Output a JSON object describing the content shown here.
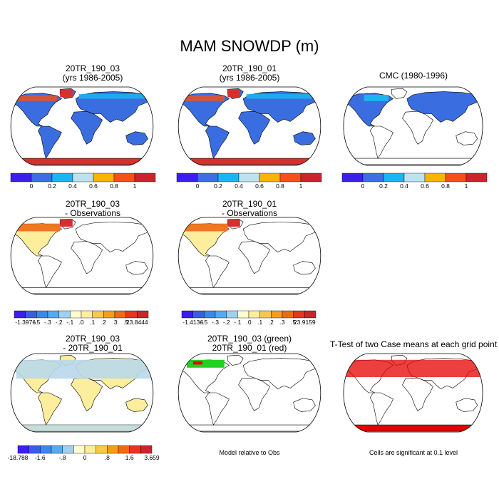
{
  "figure": {
    "title": "MAM SNOWDP (m)",
    "notes": {
      "model_relative": "Model relative to Obs",
      "significance": "Cells are significant at 0.1 level"
    }
  },
  "colors": {
    "land_uniform": "#3a6ee0",
    "antarctica_red": "#d7302c",
    "pale_yellow": "#fcee9c",
    "light_blue": "#b9d8ea",
    "sig_red": "#e60000",
    "green": "#1fd21f"
  },
  "chart_data": [
    {
      "type": "heatmap",
      "title": "20TR_190_03",
      "subtitle": "(yrs 1986-2005)",
      "colorbar": {
        "colors": [
          "#3b1ff0",
          "#3d6fe0",
          "#1db4ef",
          "#bce1ef",
          "#f6b600",
          "#f2511c",
          "#c8252c"
        ],
        "tick_labels": [
          "0",
          "0.2",
          "0.4",
          "0.6",
          "0.8",
          "1"
        ]
      }
    },
    {
      "type": "heatmap",
      "title": "20TR_190_01",
      "subtitle": "(yrs 1986-2005)",
      "colorbar": {
        "colors": [
          "#3b1ff0",
          "#3d6fe0",
          "#1db4ef",
          "#bce1ef",
          "#f6b600",
          "#f2511c",
          "#c8252c"
        ],
        "tick_labels": [
          "0",
          "0.2",
          "0.4",
          "0.6",
          "0.8",
          "1"
        ]
      }
    },
    {
      "type": "heatmap",
      "title": "CMC (1980-1996)",
      "colorbar": {
        "colors": [
          "#3b1ff0",
          "#3d6fe0",
          "#1db4ef",
          "#bce1ef",
          "#f6b600",
          "#f2511c",
          "#c8252c"
        ],
        "tick_labels": [
          "0",
          "0.2",
          "0.4",
          "0.6",
          "0.8",
          "1"
        ]
      }
    },
    {
      "type": "heatmap",
      "title": "20TR_190_03",
      "subtitle": "- Observations",
      "colorbar": {
        "colors": [
          "#3b1ff0",
          "#3b5ce6",
          "#3d86ee",
          "#55aaf0",
          "#9fd0ef",
          "#fffcd0",
          "#fcee9c",
          "#f7c948",
          "#f29e16",
          "#ef6a14",
          "#e53420",
          "#c8252c"
        ],
        "tick_labels": [
          "-1.3976",
          "-.5",
          "-.3",
          "-.2",
          "-.1",
          ".0",
          ".1",
          ".2",
          ".3",
          ".5",
          "23.8444"
        ]
      }
    },
    {
      "type": "heatmap",
      "title": "20TR_190_01",
      "subtitle": "- Observations",
      "colorbar": {
        "colors": [
          "#3b1ff0",
          "#3b5ce6",
          "#3d86ee",
          "#55aaf0",
          "#9fd0ef",
          "#fffcd0",
          "#fcee9c",
          "#f7c948",
          "#f29e16",
          "#ef6a14",
          "#e53420",
          "#c8252c"
        ],
        "tick_labels": [
          "-1.4136",
          "-.5",
          "-.3",
          "-.2",
          "-.1",
          ".0",
          ".1",
          ".2",
          ".3",
          ".5",
          "23.9159"
        ]
      }
    },
    {
      "type": "heatmap",
      "title": "20TR_190_03",
      "subtitle": "- 20TR_190_01",
      "colorbar": {
        "colors": [
          "#3b1ff0",
          "#3b5ce6",
          "#3d86ee",
          "#55aaf0",
          "#9fd0ef",
          "#fffcd0",
          "#fcee9c",
          "#f7c948",
          "#f29e16",
          "#ef6a14",
          "#e53420",
          "#c8252c"
        ],
        "tick_labels": [
          "-18.788",
          "-1.6",
          "-.8",
          "0",
          ".8",
          "1.6",
          "3.659"
        ]
      }
    },
    {
      "type": "heatmap",
      "title": "20TR_190_03 (green)",
      "subtitle": "20TR_190_01 (red)"
    },
    {
      "type": "heatmap",
      "title": "T-Test of two Case means at each grid point"
    }
  ]
}
